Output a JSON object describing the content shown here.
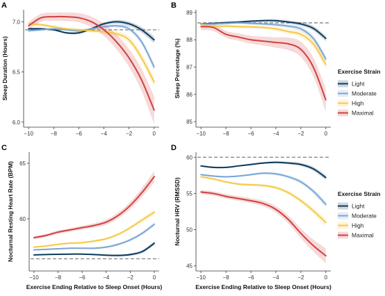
{
  "colors": {
    "Light": "#0d3a5e",
    "Moderate": "#7aa6d6",
    "High": "#f6c945",
    "Maximal": "#d0403f",
    "baseline": "#8c8c8c"
  },
  "legend": {
    "title": "Exercise Strain",
    "items": [
      "Light",
      "Moderate",
      "High",
      "Maximal"
    ]
  },
  "chart_data": [
    {
      "panel": "A",
      "type": "line",
      "xlabel": "",
      "ylabel": "Sleep Duration (Hours)",
      "xlim": [
        -10.4,
        0.4
      ],
      "ylim": [
        5.95,
        7.12
      ],
      "xticks": [
        -10,
        -8,
        -6,
        -4,
        -2,
        0
      ],
      "yticks": [
        6.0,
        6.5,
        7.0
      ],
      "ytick_labels": [
        "6.0",
        "6.5",
        "7.0"
      ],
      "baseline": 6.92,
      "series": [
        {
          "name": "Light",
          "x": [
            -10,
            -9,
            -8,
            -7,
            -6,
            -5,
            -4,
            -3,
            -2,
            -1,
            0
          ],
          "y": [
            6.93,
            6.93,
            6.92,
            6.89,
            6.89,
            6.93,
            6.98,
            7.0,
            6.98,
            6.92,
            6.82
          ],
          "band": 0.02
        },
        {
          "name": "Moderate",
          "x": [
            -10,
            -9,
            -8,
            -7,
            -6,
            -5,
            -4,
            -3,
            -2,
            -1,
            0
          ],
          "y": [
            6.91,
            6.92,
            6.93,
            6.92,
            6.91,
            6.93,
            6.95,
            6.96,
            6.93,
            6.8,
            6.55
          ],
          "band": 0.02
        },
        {
          "name": "High",
          "x": [
            -10,
            -9,
            -8,
            -7,
            -6,
            -5,
            -4,
            -3,
            -2,
            -1,
            0
          ],
          "y": [
            6.98,
            6.97,
            6.95,
            6.93,
            6.92,
            6.91,
            6.9,
            6.88,
            6.82,
            6.64,
            6.4
          ],
          "band": 0.03
        },
        {
          "name": "Maximal",
          "x": [
            -10,
            -9,
            -8,
            -7,
            -6,
            -5,
            -4,
            -3,
            -2,
            -1,
            0
          ],
          "y": [
            6.96,
            7.04,
            7.05,
            7.05,
            7.04,
            7.0,
            6.92,
            6.8,
            6.64,
            6.42,
            6.12
          ],
          "band": 0.08
        }
      ]
    },
    {
      "panel": "B",
      "type": "line",
      "xlabel": "",
      "ylabel": "Sleep Percentage (%)",
      "xlim": [
        -10.4,
        0.4
      ],
      "ylim": [
        84.8,
        89.1
      ],
      "xticks": [
        -10,
        -8,
        -6,
        -4,
        -2,
        0
      ],
      "yticks": [
        85,
        86,
        87,
        88,
        89
      ],
      "ytick_labels": [
        "85",
        "86",
        "87",
        "88",
        "89"
      ],
      "baseline": 88.62,
      "series": [
        {
          "name": "Light",
          "x": [
            -10,
            -9,
            -8,
            -7,
            -6,
            -5,
            -4,
            -3,
            -2,
            -1,
            0
          ],
          "y": [
            88.58,
            88.6,
            88.63,
            88.65,
            88.68,
            88.7,
            88.7,
            88.65,
            88.58,
            88.42,
            88.05
          ],
          "band": 0.06
        },
        {
          "name": "Moderate",
          "x": [
            -10,
            -9,
            -8,
            -7,
            -6,
            -5,
            -4,
            -3,
            -2,
            -1,
            0
          ],
          "y": [
            88.58,
            88.58,
            88.6,
            88.62,
            88.6,
            88.58,
            88.55,
            88.5,
            88.4,
            88.05,
            87.3
          ],
          "band": 0.08
        },
        {
          "name": "High",
          "x": [
            -10,
            -9,
            -8,
            -7,
            -6,
            -5,
            -4,
            -3,
            -2,
            -1,
            0
          ],
          "y": [
            88.55,
            88.5,
            88.5,
            88.48,
            88.47,
            88.45,
            88.4,
            88.3,
            88.2,
            87.85,
            87.1
          ],
          "band": 0.1
        },
        {
          "name": "Maximal",
          "x": [
            -10,
            -9,
            -8,
            -7,
            -6,
            -5,
            -4,
            -3,
            -2,
            -1,
            0
          ],
          "y": [
            88.48,
            88.45,
            88.2,
            88.1,
            88.0,
            87.95,
            87.9,
            87.85,
            87.65,
            87.0,
            85.8
          ],
          "band": 0.25
        }
      ]
    },
    {
      "panel": "C",
      "type": "line",
      "xlabel": "Exercise Ending Relative to Sleep Onset (Hours)",
      "ylabel": "Nocturnal Resting Heart Rate (BPM)",
      "xlim": [
        -10.4,
        0.4
      ],
      "ylim": [
        55.3,
        66.0
      ],
      "xticks": [
        -10,
        -8,
        -6,
        -4,
        -2,
        0
      ],
      "yticks": [
        55,
        60,
        65
      ],
      "ytick_labels": [
        "55",
        "60",
        "65"
      ],
      "baseline": 56.4,
      "series": [
        {
          "name": "Light",
          "x": [
            -10,
            -9,
            -8,
            -7,
            -6,
            -5,
            -4,
            -3,
            -2,
            -1,
            0
          ],
          "y": [
            56.75,
            56.78,
            56.8,
            56.82,
            56.82,
            56.78,
            56.72,
            56.7,
            56.78,
            57.05,
            57.8
          ],
          "band": 0.1
        },
        {
          "name": "Moderate",
          "x": [
            -10,
            -9,
            -8,
            -7,
            -6,
            -5,
            -4,
            -3,
            -2,
            -1,
            0
          ],
          "y": [
            57.2,
            57.25,
            57.3,
            57.35,
            57.35,
            57.35,
            57.45,
            57.7,
            58.1,
            58.7,
            59.5
          ],
          "band": 0.12
        },
        {
          "name": "High",
          "x": [
            -10,
            -9,
            -8,
            -7,
            -6,
            -5,
            -4,
            -3,
            -2,
            -1,
            0
          ],
          "y": [
            57.45,
            57.55,
            57.7,
            57.8,
            57.85,
            58.0,
            58.2,
            58.6,
            59.2,
            59.9,
            60.6
          ],
          "band": 0.15
        },
        {
          "name": "Maximal",
          "x": [
            -10,
            -9,
            -8,
            -7,
            -6,
            -5,
            -4,
            -3,
            -2,
            -1,
            0
          ],
          "y": [
            58.3,
            58.5,
            58.8,
            59.0,
            59.2,
            59.4,
            59.7,
            60.3,
            61.2,
            62.4,
            63.8
          ],
          "band": 0.3
        }
      ]
    },
    {
      "panel": "D",
      "type": "line",
      "xlabel": "Exercise Ending Relative to Sleep Onset (Hours)",
      "ylabel": "Nocturnal HRV (RMSSD)",
      "xlim": [
        -10.4,
        0.4
      ],
      "ylim": [
        44.3,
        60.7
      ],
      "xticks": [
        -10,
        -8,
        -6,
        -4,
        -2,
        0
      ],
      "yticks": [
        45,
        50,
        55,
        60
      ],
      "ytick_labels": [
        "45",
        "50",
        "55",
        "60"
      ],
      "baseline": 60.0,
      "series": [
        {
          "name": "Light",
          "x": [
            -10,
            -9,
            -8,
            -7,
            -6,
            -5,
            -4,
            -3,
            -2,
            -1,
            0
          ],
          "y": [
            58.8,
            58.6,
            58.6,
            58.8,
            59.0,
            59.2,
            59.3,
            59.2,
            59.0,
            58.4,
            57.2
          ],
          "band": 0.2
        },
        {
          "name": "Moderate",
          "x": [
            -10,
            -9,
            -8,
            -7,
            -6,
            -5,
            -4,
            -3,
            -2,
            -1,
            0
          ],
          "y": [
            57.6,
            57.4,
            57.3,
            57.4,
            57.6,
            57.8,
            57.7,
            57.3,
            56.6,
            55.3,
            53.5
          ],
          "band": 0.25
        },
        {
          "name": "High",
          "x": [
            -10,
            -9,
            -8,
            -7,
            -6,
            -5,
            -4,
            -3,
            -2,
            -1,
            0
          ],
          "y": [
            57.3,
            57.0,
            56.6,
            56.3,
            56.2,
            56.1,
            55.8,
            55.1,
            54.0,
            52.6,
            51.0
          ],
          "band": 0.3
        },
        {
          "name": "Maximal",
          "x": [
            -10,
            -9,
            -8,
            -7,
            -6,
            -5,
            -4,
            -3,
            -2,
            -1,
            0
          ],
          "y": [
            55.2,
            55.0,
            54.6,
            54.3,
            54.0,
            53.6,
            52.8,
            51.4,
            49.5,
            47.8,
            46.4
          ],
          "band": 0.6
        }
      ]
    }
  ]
}
